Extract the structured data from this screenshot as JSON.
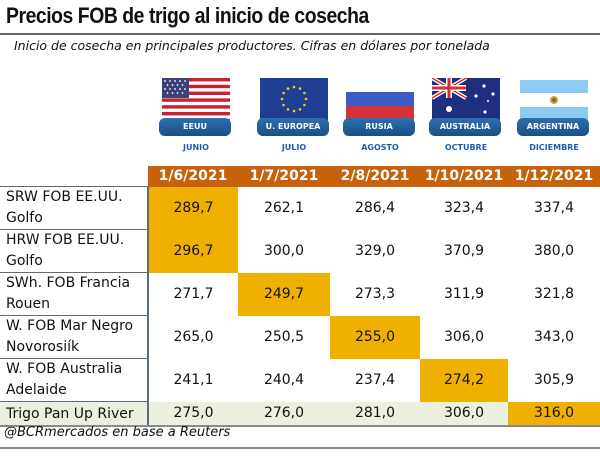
{
  "header": {
    "title": "Precios FOB de trigo al inicio de cosecha",
    "subtitle": "Inicio de cosecha en principales productores. Cifras en dólares por tonelada"
  },
  "countries": [
    {
      "name": "EEUU",
      "month": "JUNIO",
      "flag": "usa-flag-icon"
    },
    {
      "name": "U. EUROPEA",
      "month": "JULIO",
      "flag": "eu-flag-icon"
    },
    {
      "name": "RUSIA",
      "month": "AGOSTO",
      "flag": "russia-flag-icon"
    },
    {
      "name": "AUSTRALIA",
      "month": "OCTUBRE",
      "flag": "australia-flag-icon"
    },
    {
      "name": "ARGENTINA",
      "month": "DICIEMBRE",
      "flag": "argentina-flag-icon"
    }
  ],
  "colors": {
    "header_bg": "#C8620A",
    "highlight": "#F0B000",
    "last_row_bg": "#EBF0DF",
    "badge": "#1f5fa8"
  },
  "table": {
    "columns": [
      "1/6/2021",
      "1/7/2021",
      "2/8/2021",
      "1/10/2021",
      "1/12/2021"
    ],
    "rows": [
      {
        "label_line1": "SRW FOB EE.UU.",
        "label_line2": "Golfo",
        "values": [
          "289,7",
          "262,1",
          "286,4",
          "323,4",
          "337,4"
        ],
        "highlight": 0
      },
      {
        "label_line1": "HRW FOB EE.UU.",
        "label_line2": "Golfo",
        "values": [
          "296,7",
          "300,0",
          "329,0",
          "370,9",
          "380,0"
        ],
        "highlight": 0
      },
      {
        "label_line1": "SWh. FOB Francia",
        "label_line2": "Rouen",
        "values": [
          "271,7",
          "249,7",
          "273,3",
          "311,9",
          "321,8"
        ],
        "highlight": 1
      },
      {
        "label_line1": "W. FOB Mar Negro",
        "label_line2": "Novorosiík",
        "values": [
          "265,0",
          "250,5",
          "255,0",
          "306,0",
          "343,0"
        ],
        "highlight": 2
      },
      {
        "label_line1": "W. FOB Australia",
        "label_line2": "Adelaide",
        "values": [
          "241,1",
          "240,4",
          "237,4",
          "274,2",
          "305,9"
        ],
        "highlight": 3
      },
      {
        "label_line1": "Trigo Pan Up River",
        "label_line2": "",
        "values": [
          "275,0",
          "276,0",
          "281,0",
          "306,0",
          "316,0"
        ],
        "highlight": 4
      }
    ]
  },
  "footer": {
    "source": "@BCRmercados en base a Reuters"
  }
}
